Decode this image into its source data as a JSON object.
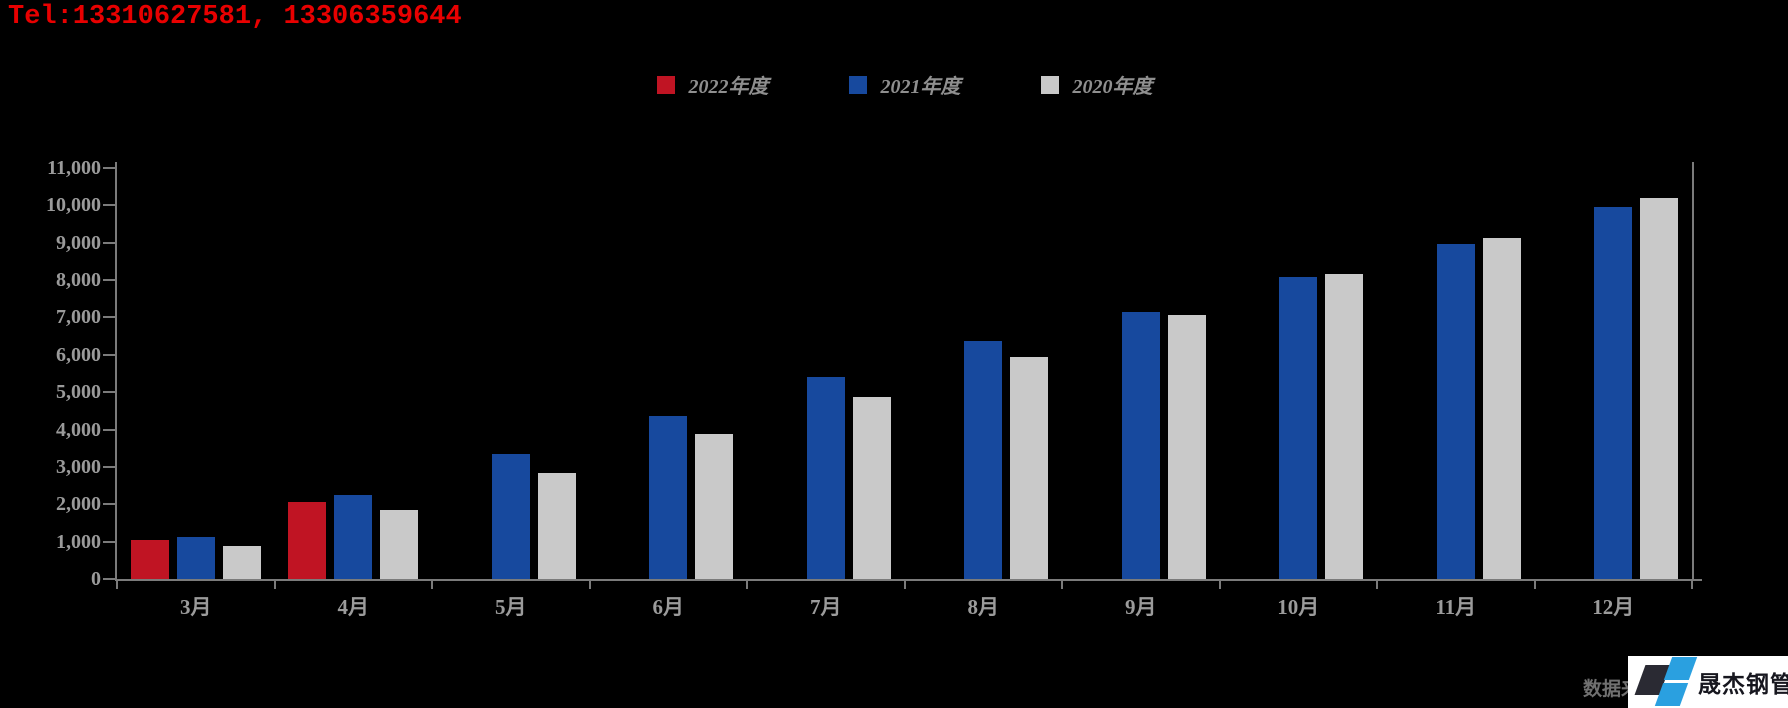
{
  "header": {
    "tel_text": "Tel:13310627581, 13306359644"
  },
  "chart_data": {
    "type": "bar",
    "title": "",
    "xlabel": "",
    "ylabel": "",
    "categories": [
      "3月",
      "4月",
      "5月",
      "6月",
      "7月",
      "8月",
      "9月",
      "10月",
      "11月",
      "12月"
    ],
    "series": [
      {
        "name": "2022年度",
        "color": "#c01423",
        "values": [
          1050,
          2050,
          null,
          null,
          null,
          null,
          null,
          null,
          null,
          null
        ]
      },
      {
        "name": "2021年度",
        "color": "#17499e",
        "values": [
          1130,
          2260,
          3350,
          4360,
          5410,
          6370,
          7150,
          8070,
          8960,
          9950
        ]
      },
      {
        "name": "2020年度",
        "color": "#c9c9c9",
        "values": [
          890,
          1860,
          2850,
          3870,
          4880,
          5950,
          7060,
          8160,
          9130,
          10200
        ]
      }
    ],
    "ylim": [
      0,
      11000
    ],
    "ytick_step": 1000,
    "ytick_labels": [
      "0",
      "1,000",
      "2,000",
      "3,000",
      "4,000",
      "5,000",
      "6,000",
      "7,000",
      "8,000",
      "9,000",
      "10,000",
      "11,000"
    ],
    "grid": false,
    "legend_position": "top-center",
    "background_color": "#000000",
    "axis_color": "#7b7b7b",
    "tick_label_color": "#9a9a9a"
  },
  "footer": {
    "source_text": "数据来",
    "logo": {
      "text": "晟杰钢管",
      "background": "#ffffff",
      "dark_shape_color": "#2a2a33",
      "blue_shape_color": "#2aa0e0",
      "text_color": "#17171f"
    }
  }
}
